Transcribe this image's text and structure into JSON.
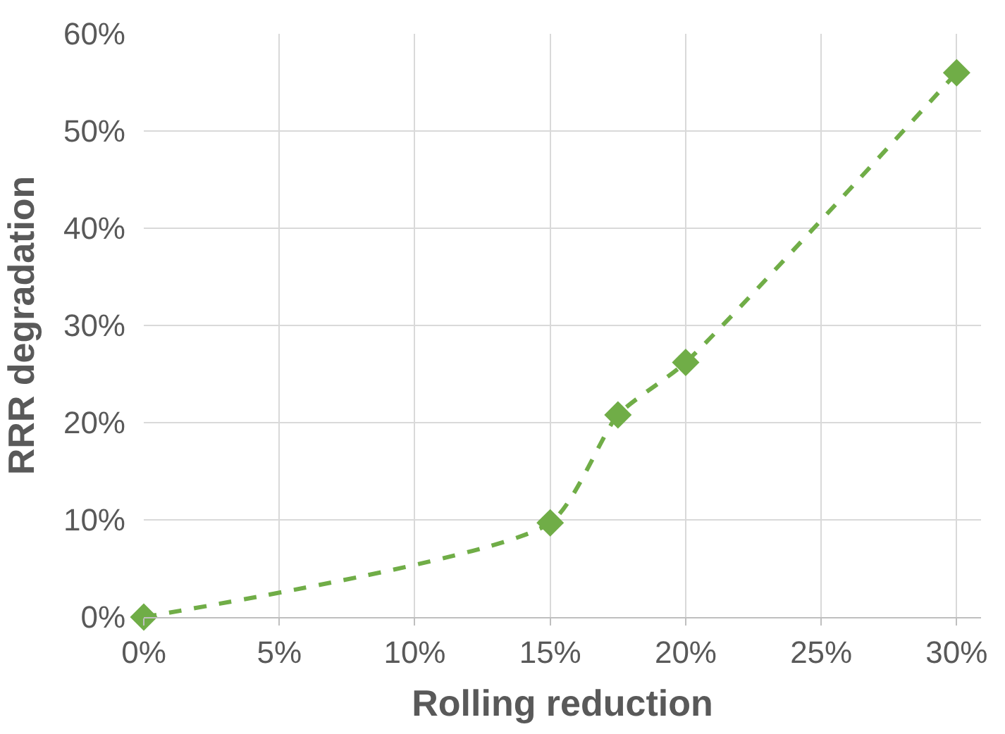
{
  "chart_data": {
    "type": "line",
    "xlabel": "Rolling reduction",
    "ylabel": "RRR degradation",
    "x": [
      0,
      15,
      17.5,
      20,
      30
    ],
    "series": [
      {
        "color": "#70ad47",
        "values": [
          0,
          9.7,
          20.8,
          26.2,
          56
        ]
      }
    ],
    "xlim": [
      0,
      30.9
    ],
    "ylim": [
      0,
      60
    ],
    "xticks": [
      {
        "value": 0,
        "label": "0%"
      },
      {
        "value": 5,
        "label": "5%"
      },
      {
        "value": 10,
        "label": "10%"
      },
      {
        "value": 15,
        "label": "15%"
      },
      {
        "value": 20,
        "label": "20%"
      },
      {
        "value": 25,
        "label": "25%"
      },
      {
        "value": 30,
        "label": "30%"
      }
    ],
    "yticks": [
      {
        "value": 0,
        "label": "0%"
      },
      {
        "value": 10,
        "label": "10%"
      },
      {
        "value": 20,
        "label": "20%"
      },
      {
        "value": 30,
        "label": "30%"
      },
      {
        "value": 40,
        "label": "40%"
      },
      {
        "value": 50,
        "label": "50%"
      },
      {
        "value": 60,
        "label": "60%"
      }
    ],
    "grid": true,
    "marker": "diamond",
    "line_style": "dashed",
    "legend": false
  }
}
